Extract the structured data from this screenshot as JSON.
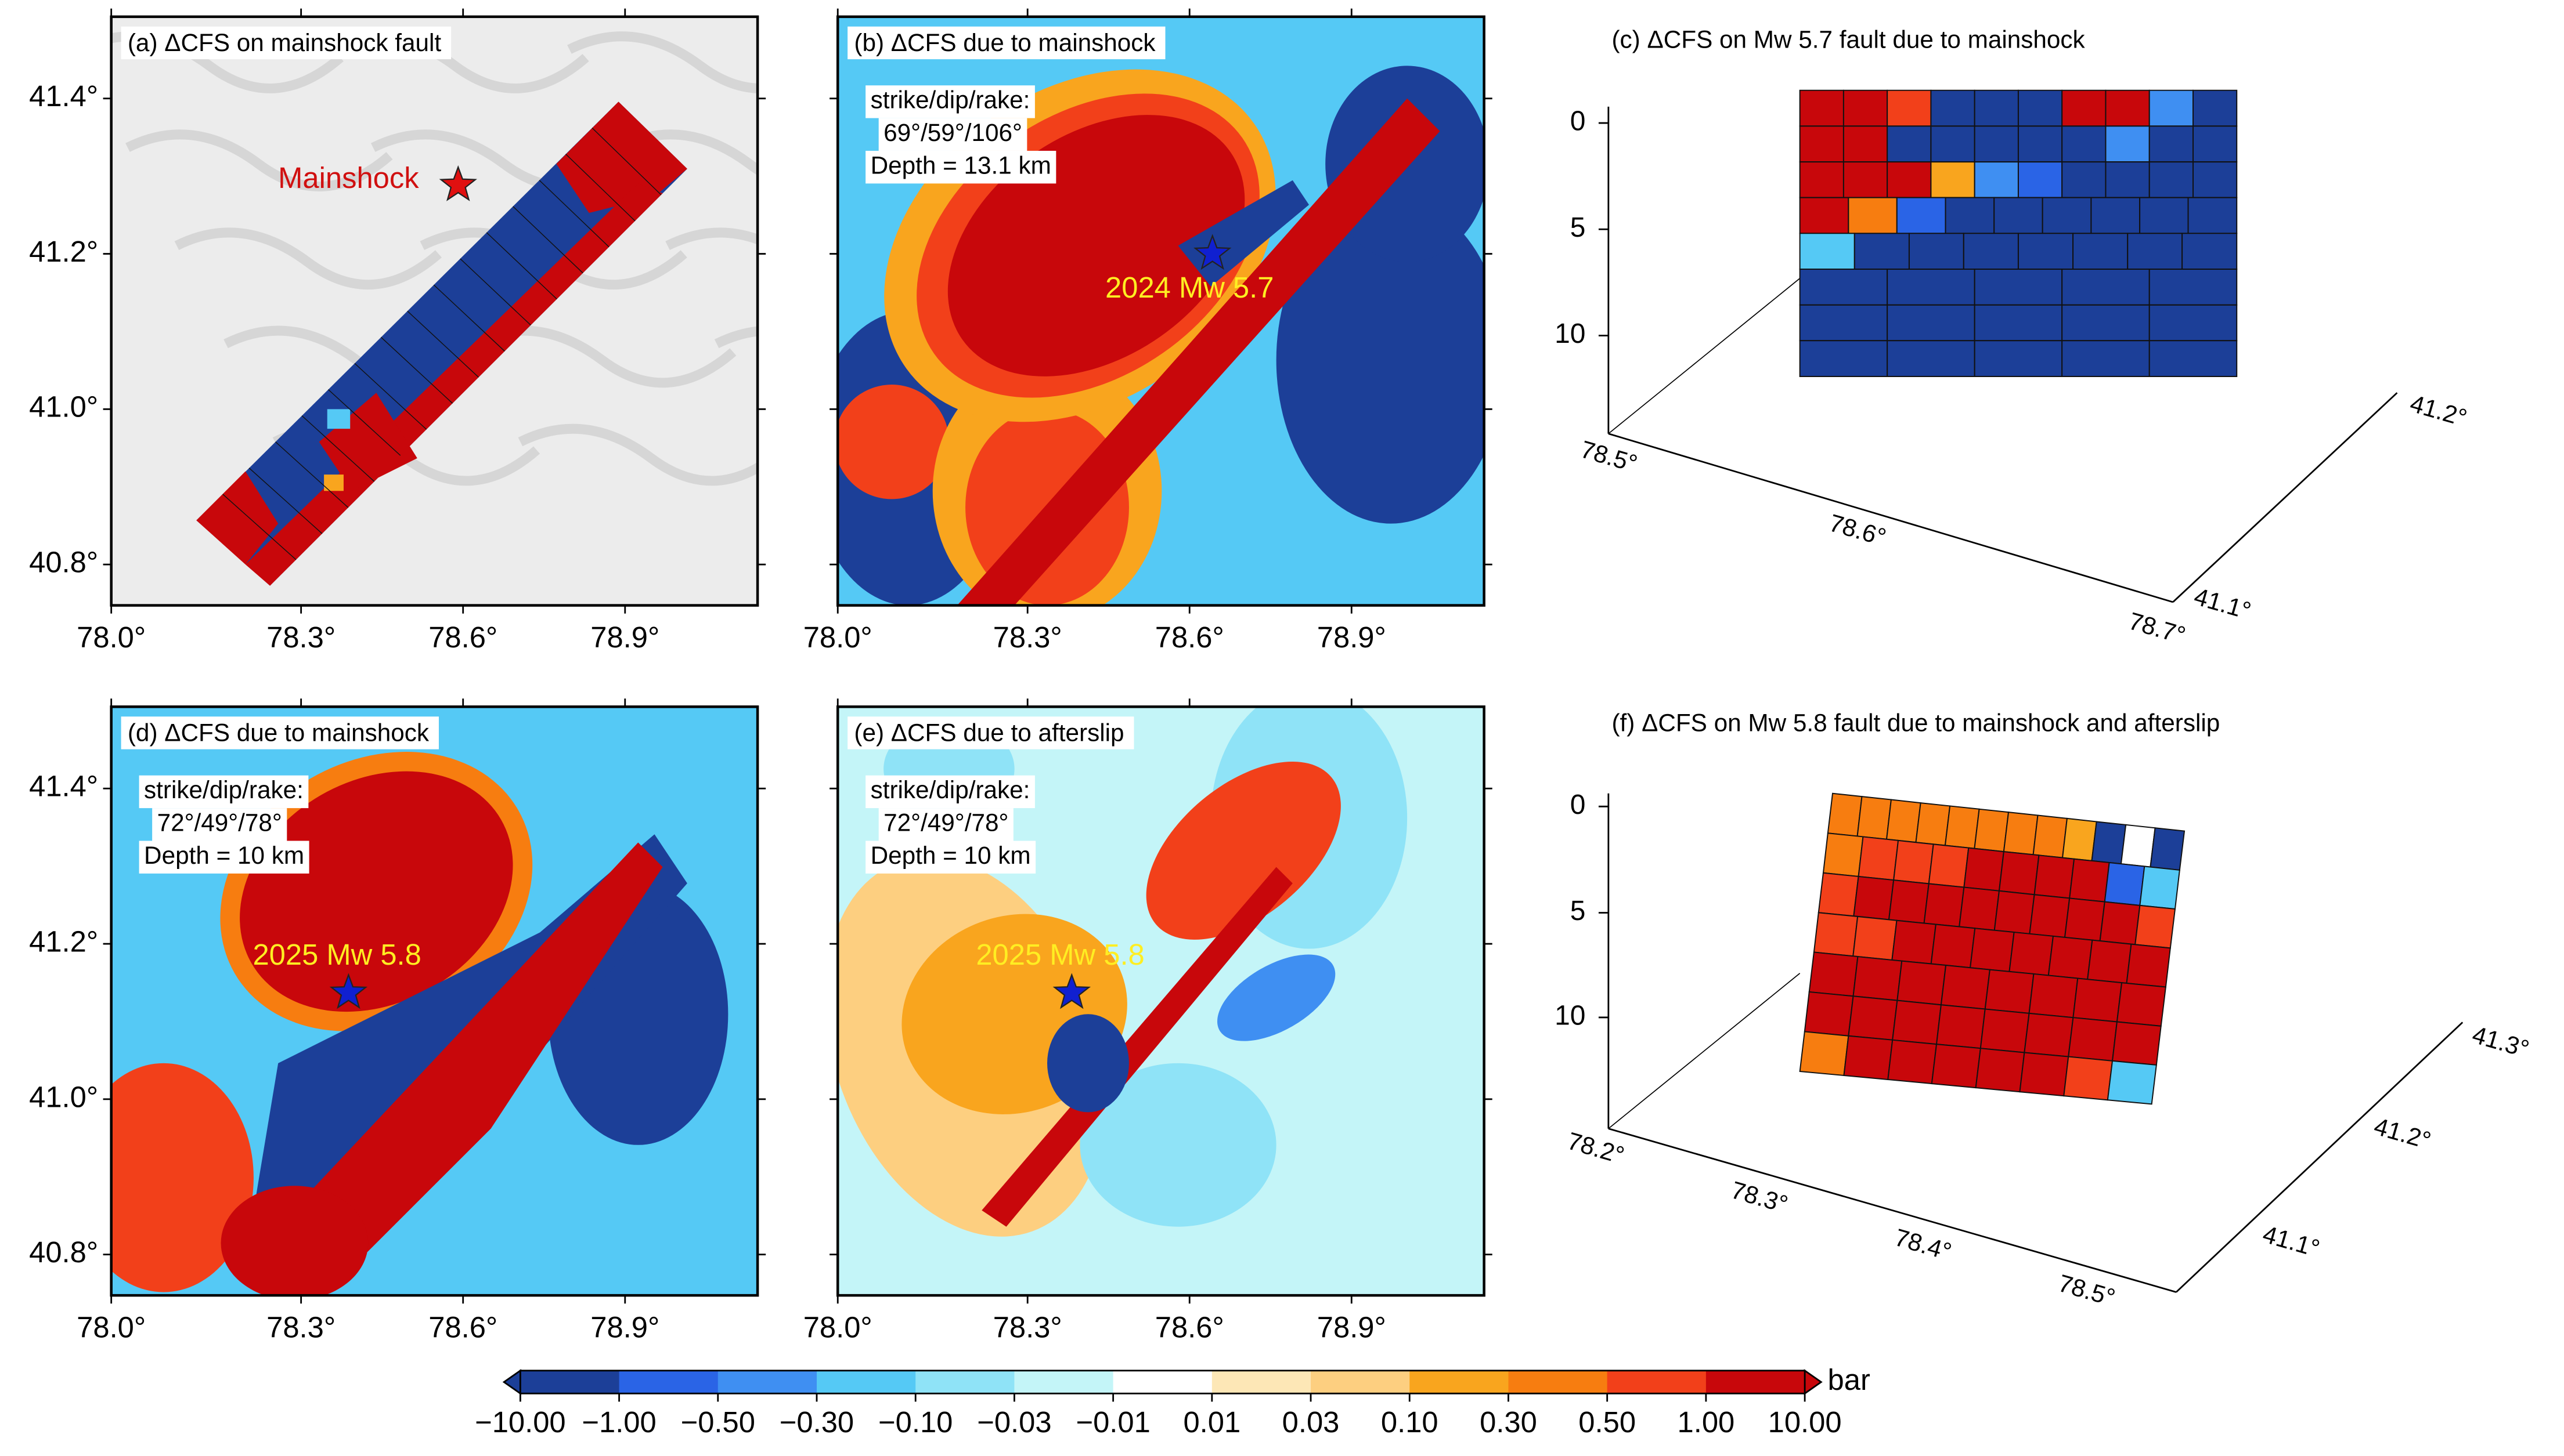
{
  "panels": [
    {
      "title": "(a) ΔCFS on mainshock fault",
      "annotation": "Mainshock",
      "xticks": [
        "78.0°",
        "78.3°",
        "78.6°",
        "78.9°"
      ],
      "yticks": [
        "41.4°",
        "41.2°",
        "41.0°",
        "40.8°"
      ]
    },
    {
      "title": "(b) ΔCFS due to mainshock",
      "mechanism": [
        "strike/dip/rake:",
        "69°/59°/106°",
        "Depth = 13.1 km"
      ],
      "annotation": "2024 Mw 5.7",
      "xticks": [
        "78.0°",
        "78.3°",
        "78.6°",
        "78.9°"
      ]
    },
    {
      "title": "(c) ΔCFS on Mw 5.7 fault due to mainshock",
      "depth_ticks": [
        "0",
        "5",
        "10"
      ],
      "lon_ticks": [
        "78.5°",
        "78.6°",
        "78.7°"
      ],
      "lat_ticks": [
        "41.2°",
        "41.1°"
      ]
    },
    {
      "title": "(d) ΔCFS due to mainshock",
      "mechanism": [
        "strike/dip/rake:",
        "72°/49°/78°",
        "Depth = 10 km"
      ],
      "annotation": "2025 Mw 5.8",
      "xticks": [
        "78.0°",
        "78.3°",
        "78.6°",
        "78.9°"
      ],
      "yticks": [
        "41.4°",
        "41.2°",
        "41.0°",
        "40.8°"
      ]
    },
    {
      "title": "(e) ΔCFS due to afterslip",
      "mechanism": [
        "strike/dip/rake:",
        "72°/49°/78°",
        "Depth = 10 km"
      ],
      "annotation": "2025 Mw 5.8",
      "xticks": [
        "78.0°",
        "78.3°",
        "78.6°",
        "78.9°"
      ]
    },
    {
      "title": "(f) ΔCFS on Mw 5.8 fault due to mainshock and afterslip",
      "depth_ticks": [
        "0",
        "5",
        "10"
      ],
      "lon_ticks": [
        "78.2°",
        "78.3°",
        "78.4°",
        "78.5°"
      ],
      "lat_ticks": [
        "41.3°",
        "41.2°",
        "41.1°"
      ]
    }
  ],
  "colorbar": {
    "labels": [
      "−10.00",
      "−1.00",
      "−0.50",
      "−0.30",
      "−0.10",
      "−0.03",
      "−0.01",
      "0.01",
      "0.03",
      "0.10",
      "0.30",
      "0.50",
      "1.00",
      "10.00"
    ],
    "colors": [
      "#1c3f98",
      "#2a64e6",
      "#3f8ff2",
      "#55c9f5",
      "#8fe3f7",
      "#c4f5f8",
      "#ffffff",
      "#fde7b6",
      "#fdcf80",
      "#f9a51e",
      "#f77d10",
      "#f2401a",
      "#c8070b"
    ],
    "unit": "bar"
  }
}
